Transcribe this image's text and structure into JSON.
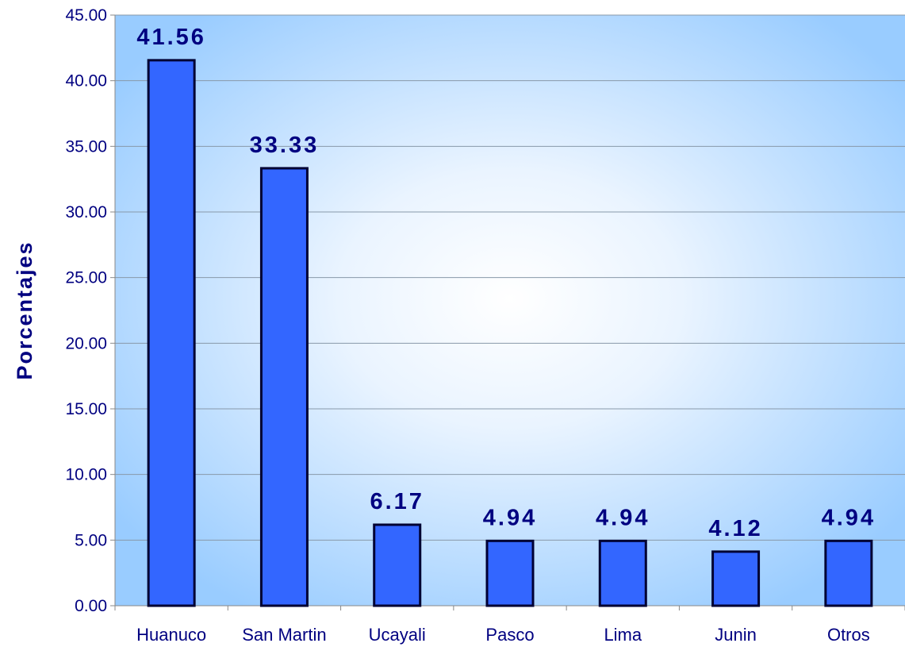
{
  "chart_data": {
    "type": "bar",
    "categories": [
      "Huanuco",
      "San Martin",
      "Ucayali",
      "Pasco",
      "Lima",
      "Junin",
      "Otros"
    ],
    "values": [
      41.56,
      33.33,
      6.17,
      4.94,
      4.94,
      4.12,
      4.94
    ],
    "data_labels": [
      "41.56",
      "33.33",
      "6.17",
      "4.94",
      "4.94",
      "4.12",
      "4.94"
    ],
    "ylabel": "Porcentajes",
    "ylim": [
      0,
      45
    ],
    "yticks": [
      "0.00",
      "5.00",
      "10.00",
      "15.00",
      "20.00",
      "25.00",
      "30.00",
      "35.00",
      "40.00",
      "45.00"
    ],
    "grid": true,
    "colors": {
      "bar_fill": "#3366FF",
      "bar_stroke": "#000033",
      "text": "#000080",
      "gridline": "#8899AA",
      "plot_bg_edge": "#99CCFF",
      "plot_bg_center": "#FFFFFF"
    }
  }
}
